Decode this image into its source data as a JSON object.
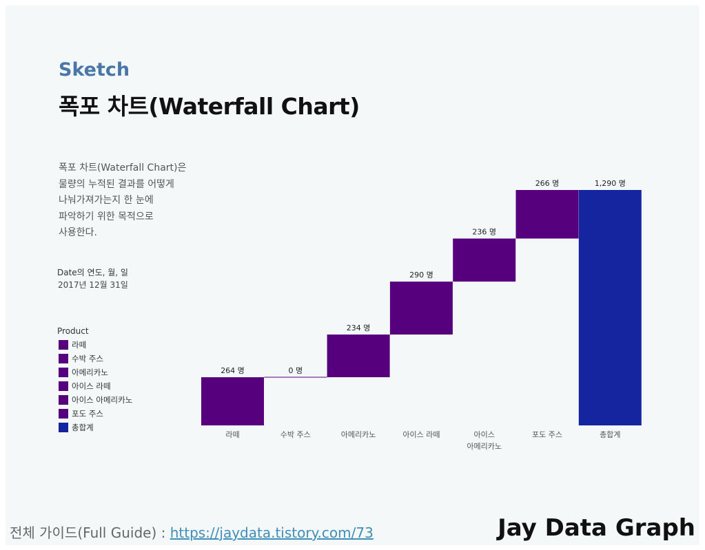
{
  "header": {
    "subtitle": "Sketch",
    "title": "폭포 차트(Waterfall Chart)"
  },
  "description": {
    "lines": [
      "폭포 차트(Waterfall Chart)은",
      "물량의 누적된 결과를 어떻게",
      "나눠가져가는지 한 눈에",
      "파악하기 위한 목적으로",
      "사용한다."
    ]
  },
  "filter": {
    "label": "Date의 연도, 월, 일",
    "value": "2017년 12월 31일"
  },
  "legend": {
    "title": "Product",
    "items": [
      {
        "label": "라떼",
        "color": "#56007d"
      },
      {
        "label": "수박 주스",
        "color": "#56007d"
      },
      {
        "label": "아메리카노",
        "color": "#56007d"
      },
      {
        "label": "아이스 라떼",
        "color": "#56007d"
      },
      {
        "label": "아이스 아메리카노",
        "color": "#56007d"
      },
      {
        "label": "포도 주스",
        "color": "#56007d"
      },
      {
        "label": "총합계",
        "color": "#1525a0"
      }
    ]
  },
  "chart_data": {
    "type": "waterfall",
    "categories": [
      [
        "라떼"
      ],
      [
        "수박 주스"
      ],
      [
        "아메리카노"
      ],
      [
        "아이스 라떼"
      ],
      [
        "아이스",
        "아메리카노"
      ],
      [
        "포도 주스"
      ],
      [
        "총합계"
      ]
    ],
    "values": [
      264,
      0,
      234,
      290,
      236,
      266,
      1290
    ],
    "is_total": [
      false,
      false,
      false,
      false,
      false,
      false,
      true
    ],
    "value_labels": [
      "264 명",
      "0 명",
      "234 명",
      "290 명",
      "236 명",
      "266 명",
      "1,290 명"
    ],
    "ylim": [
      0,
      1290
    ],
    "colors": {
      "step": "#56007d",
      "total": "#1525a0"
    },
    "grid": false
  },
  "footer": {
    "guide_label": "전체 가이드(Full Guide) : ",
    "guide_link": "https://jaydata.tistory.com/73",
    "brand": "Jay Data Graph"
  }
}
